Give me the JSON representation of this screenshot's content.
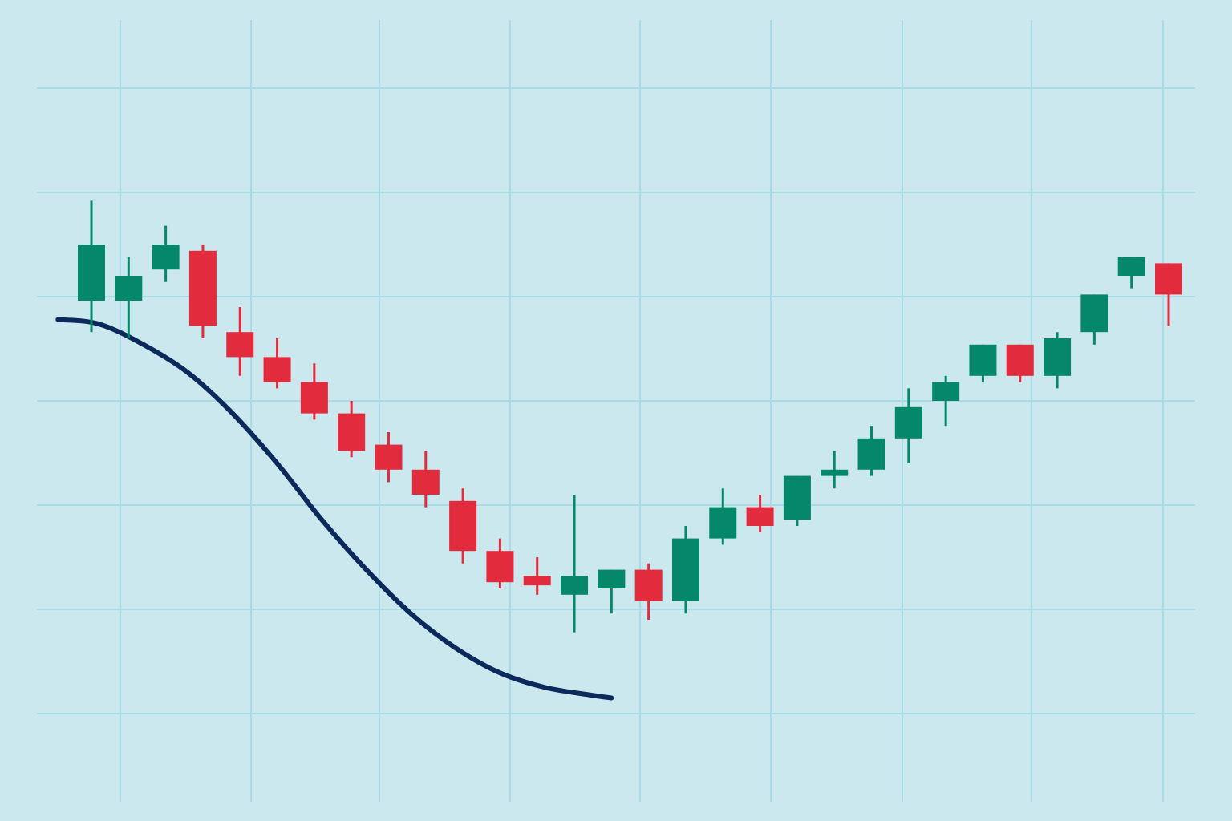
{
  "colors": {
    "background": "#cbe8ee",
    "grid": "#a9dbe6",
    "bullish": "#05876a",
    "bearish": "#e22b3c",
    "trend_line": "#0b2a5b"
  },
  "chart_data": {
    "type": "candlestick",
    "title": "",
    "xlabel": "",
    "ylabel": "",
    "grid": true,
    "legend": "none",
    "xlim": [
      0.5,
      30.5
    ],
    "ylim": [
      0,
      100
    ],
    "candles": [
      {
        "x": 1,
        "open": 66,
        "high": 82,
        "low": 61,
        "close": 75
      },
      {
        "x": 2,
        "open": 66,
        "high": 73,
        "low": 60,
        "close": 70
      },
      {
        "x": 3,
        "open": 71,
        "high": 78,
        "low": 69,
        "close": 75
      },
      {
        "x": 4,
        "open": 74,
        "high": 75,
        "low": 60,
        "close": 62
      },
      {
        "x": 5,
        "open": 61,
        "high": 65,
        "low": 54,
        "close": 57
      },
      {
        "x": 6,
        "open": 57,
        "high": 60,
        "low": 52,
        "close": 53
      },
      {
        "x": 7,
        "open": 53,
        "high": 56,
        "low": 47,
        "close": 48
      },
      {
        "x": 8,
        "open": 48,
        "high": 50,
        "low": 41,
        "close": 42
      },
      {
        "x": 9,
        "open": 43,
        "high": 45,
        "low": 37,
        "close": 39
      },
      {
        "x": 10,
        "open": 39,
        "high": 42,
        "low": 33,
        "close": 35
      },
      {
        "x": 11,
        "open": 34,
        "high": 36,
        "low": 24,
        "close": 26
      },
      {
        "x": 12,
        "open": 26,
        "high": 28,
        "low": 20,
        "close": 21
      },
      {
        "x": 13,
        "open": 22,
        "high": 25,
        "low": 19,
        "close": 20.5
      },
      {
        "x": 14,
        "open": 19,
        "high": 35,
        "low": 13,
        "close": 22
      },
      {
        "x": 15,
        "open": 20,
        "high": 23,
        "low": 16,
        "close": 23
      },
      {
        "x": 16,
        "open": 23,
        "high": 24,
        "low": 15,
        "close": 18
      },
      {
        "x": 17,
        "open": 18,
        "high": 30,
        "low": 16,
        "close": 28
      },
      {
        "x": 18,
        "open": 28,
        "high": 36,
        "low": 27,
        "close": 33
      },
      {
        "x": 19,
        "open": 33,
        "high": 35,
        "low": 29,
        "close": 30
      },
      {
        "x": 20,
        "open": 31,
        "high": 38,
        "low": 30,
        "close": 38
      },
      {
        "x": 21,
        "open": 38,
        "high": 42,
        "low": 36,
        "close": 39
      },
      {
        "x": 22,
        "open": 39,
        "high": 46,
        "low": 38,
        "close": 44
      },
      {
        "x": 23,
        "open": 44,
        "high": 52,
        "low": 40,
        "close": 49
      },
      {
        "x": 24,
        "open": 50,
        "high": 54,
        "low": 46,
        "close": 53
      },
      {
        "x": 25,
        "open": 54,
        "high": 58,
        "low": 53,
        "close": 59
      },
      {
        "x": 26,
        "open": 59,
        "high": 58,
        "low": 53,
        "close": 54
      },
      {
        "x": 27,
        "open": 54,
        "high": 61,
        "low": 52,
        "close": 60
      },
      {
        "x": 28,
        "open": 61,
        "high": 67,
        "low": 59,
        "close": 67
      },
      {
        "x": 29,
        "open": 70,
        "high": 72,
        "low": 68,
        "close": 73
      },
      {
        "x": 30,
        "open": 72,
        "high": 72,
        "low": 62,
        "close": 67
      }
    ],
    "series": [
      {
        "type": "line",
        "x": [
          0.1,
          1.2,
          2.4,
          3.6,
          4.8,
          6.0,
          7.2,
          8.4,
          9.6,
          10.8,
          12.0,
          13.2,
          14.4,
          15.0
        ],
        "y": [
          63,
          62.3,
          59,
          54.5,
          48,
          40,
          31,
          23,
          16,
          10.5,
          6.5,
          4.2,
          3,
          2.5
        ]
      }
    ]
  }
}
